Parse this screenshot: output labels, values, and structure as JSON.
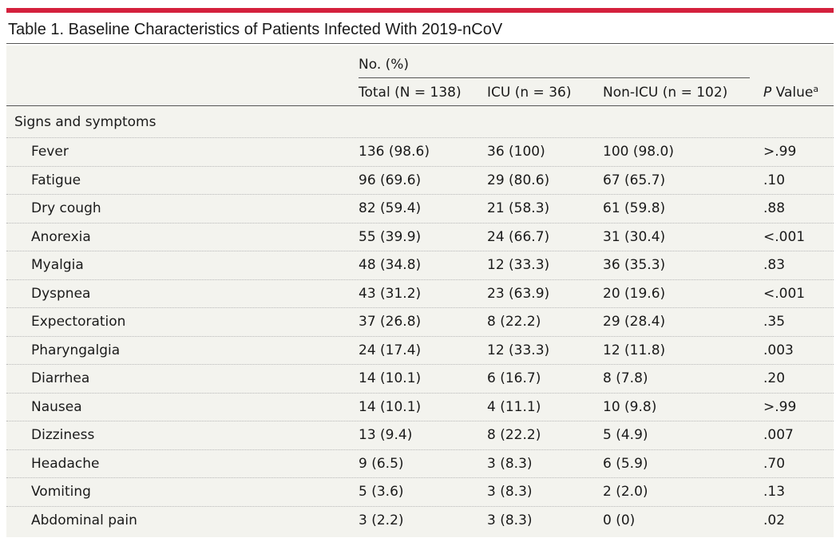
{
  "title": "Table 1. Baseline Characteristics of Patients Infected With 2019-nCoV",
  "header": {
    "group_label": "No. (%)",
    "columns": {
      "total": "Total (N = 138)",
      "icu": "ICU (n = 36)",
      "nonicu": "Non-ICU (n = 102)",
      "p_value_label": "P",
      "p_value_rest": " Value",
      "p_value_sup": "a"
    }
  },
  "section": {
    "label": "Signs and symptoms"
  },
  "rows": [
    {
      "name": "Fever",
      "total": "136 (98.6)",
      "icu": "36 (100)",
      "nonicu": "100 (98.0)",
      "p": ">.99"
    },
    {
      "name": "Fatigue",
      "total": "96 (69.6)",
      "icu": "29 (80.6)",
      "nonicu": "67 (65.7)",
      "p": ".10"
    },
    {
      "name": "Dry cough",
      "total": "82 (59.4)",
      "icu": "21 (58.3)",
      "nonicu": "61 (59.8)",
      "p": ".88"
    },
    {
      "name": "Anorexia",
      "total": "55 (39.9)",
      "icu": "24 (66.7)",
      "nonicu": "31 (30.4)",
      "p": "<.001"
    },
    {
      "name": "Myalgia",
      "total": "48 (34.8)",
      "icu": "12 (33.3)",
      "nonicu": "36 (35.3)",
      "p": ".83"
    },
    {
      "name": "Dyspnea",
      "total": "43 (31.2)",
      "icu": "23 (63.9)",
      "nonicu": "20 (19.6)",
      "p": "<.001"
    },
    {
      "name": "Expectoration",
      "total": "37 (26.8)",
      "icu": "8 (22.2)",
      "nonicu": "29 (28.4)",
      "p": ".35"
    },
    {
      "name": "Pharyngalgia",
      "total": "24 (17.4)",
      "icu": "12 (33.3)",
      "nonicu": "12 (11.8)",
      "p": ".003"
    },
    {
      "name": "Diarrhea",
      "total": "14 (10.1)",
      "icu": "6 (16.7)",
      "nonicu": "8 (7.8)",
      "p": ".20"
    },
    {
      "name": "Nausea",
      "total": "14 (10.1)",
      "icu": "4 (11.1)",
      "nonicu": "10 (9.8)",
      "p": ">.99"
    },
    {
      "name": "Dizziness",
      "total": "13 (9.4)",
      "icu": "8 (22.2)",
      "nonicu": "5 (4.9)",
      "p": ".007"
    },
    {
      "name": "Headache",
      "total": "9 (6.5)",
      "icu": "3 (8.3)",
      "nonicu": "6 (5.9)",
      "p": ".70"
    },
    {
      "name": "Vomiting",
      "total": "5 (3.6)",
      "icu": "3 (8.3)",
      "nonicu": "2 (2.0)",
      "p": ".13"
    },
    {
      "name": "Abdominal pain",
      "total": "3 (2.2)",
      "icu": "3 (8.3)",
      "nonicu": "0 (0)",
      "p": ".02"
    }
  ],
  "colors": {
    "accent_bar": "#d4213d",
    "table_background": "#f3f3ee"
  }
}
